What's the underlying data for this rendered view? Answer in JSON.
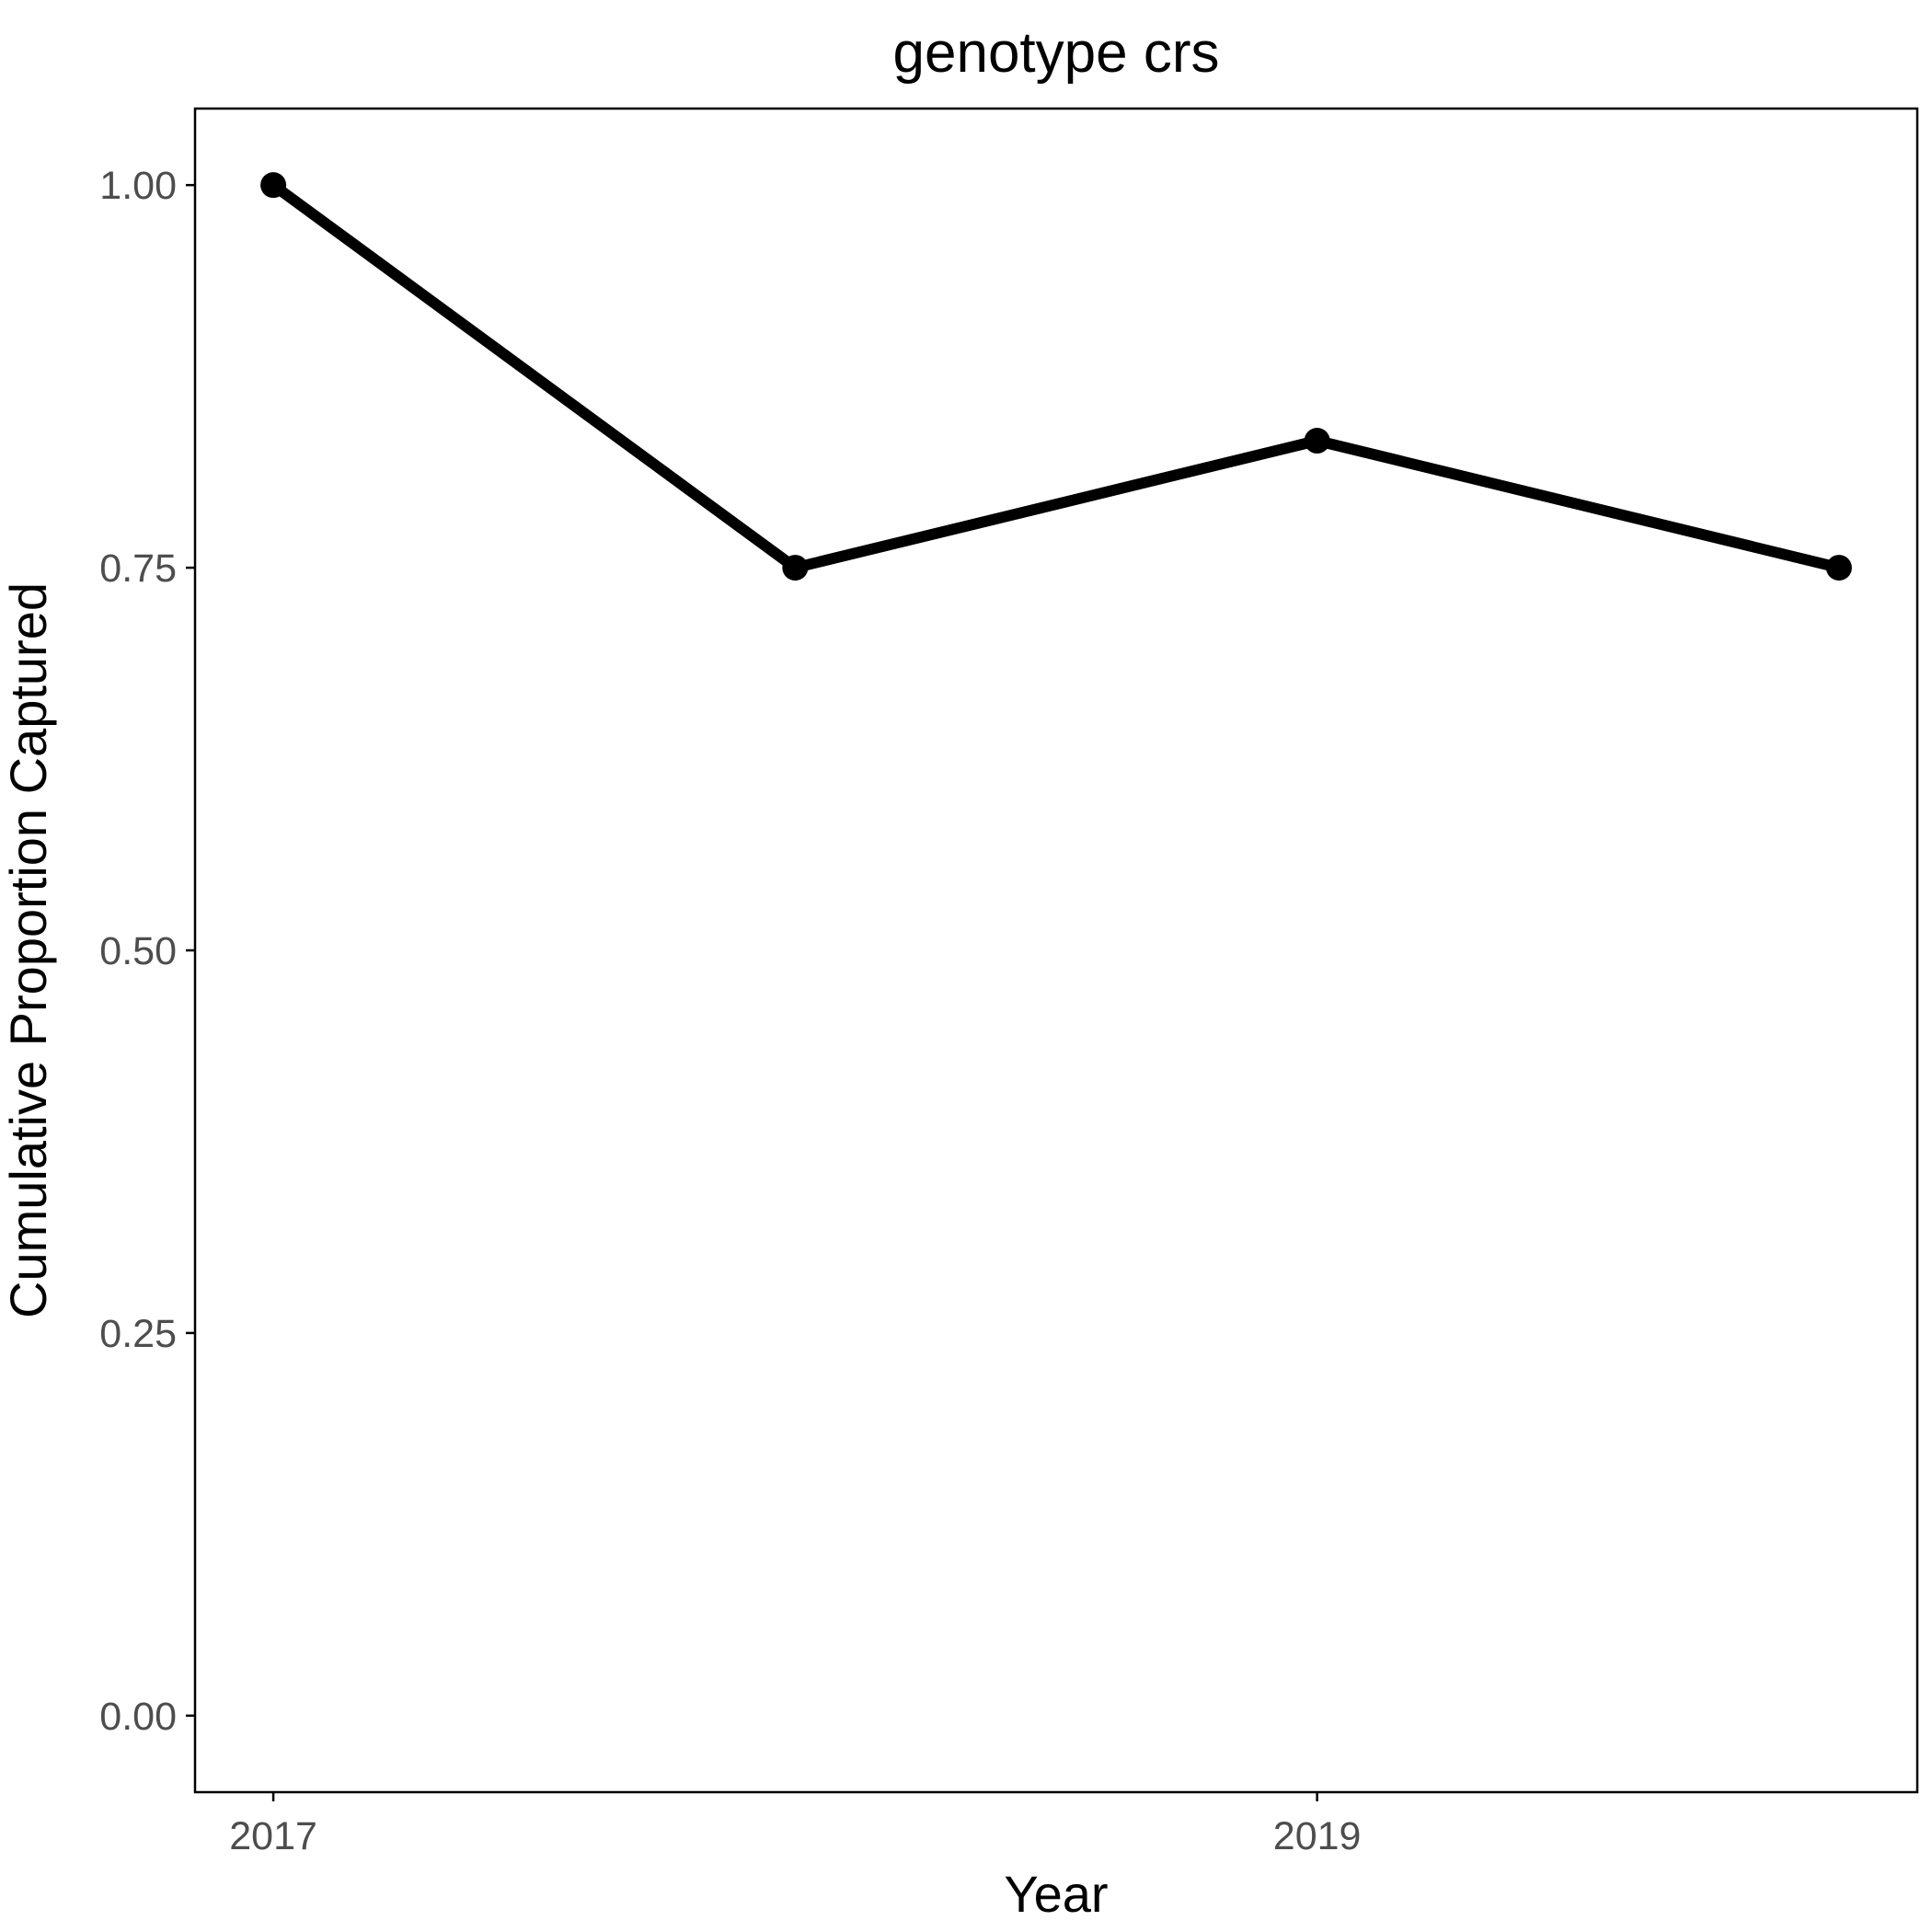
{
  "chart_data": {
    "type": "line",
    "title": "genotype crs",
    "xlabel": "Year",
    "ylabel": "Cumulative Proportion Captured",
    "x": [
      2017,
      2018,
      2019,
      2020
    ],
    "series": [
      {
        "values": [
          1.0,
          0.75,
          0.833,
          0.75
        ]
      }
    ],
    "xlim": [
      2016.85,
      2020.15
    ],
    "ylim": [
      -0.05,
      1.05
    ],
    "xticks": [
      2017,
      2019
    ],
    "xtick_labels": [
      "2017",
      "2019"
    ],
    "yticks": [
      0,
      0.25,
      0.5,
      0.75,
      1
    ],
    "ytick_labels": [
      "0.00",
      "0.25",
      "0.50",
      "0.75",
      "1.00"
    ],
    "grid": false,
    "legend": "none",
    "line_color": "#000000",
    "axis_color": "#000000",
    "tick_label_color": "#4d4d4d"
  }
}
